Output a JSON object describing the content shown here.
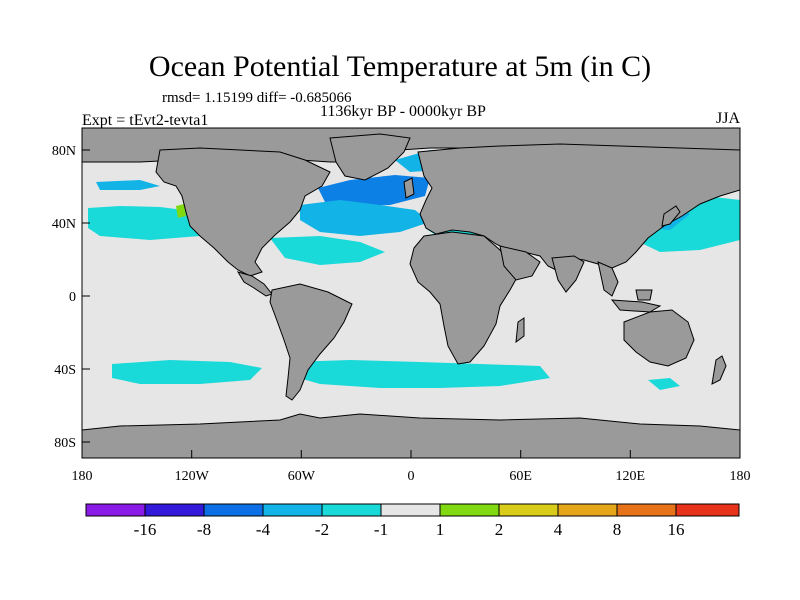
{
  "title": "Ocean Potential Temperature at 5m (in C)",
  "stats": "rmsd= 1.15199 diff= -0.685066",
  "period": "1136kyr BP - 0000kyr BP",
  "experiment": "Expt = tEvt2-tevta1",
  "season": "JJA",
  "map": {
    "lon_ticks": [
      "180",
      "120W",
      "60W",
      "0",
      "60E",
      "120E",
      "180"
    ],
    "lat_ticks": [
      "80N",
      "40N",
      "0",
      "40S",
      "80S"
    ],
    "colors": {
      "land": "#9a9a9a",
      "ocean_neutral": "#e6e6e6",
      "coastline": "#000000",
      "cyan": "#1ad9d9",
      "light_blue": "#12b3e6",
      "mid_blue": "#0d80e6",
      "green": "#80d911",
      "yellow_green": "#c6d91a"
    }
  },
  "colorbar": {
    "labels": [
      "-16",
      "-8",
      "-4",
      "-2",
      "-1",
      "1",
      "2",
      "4",
      "8",
      "16"
    ],
    "colors": [
      "#8a1ae6",
      "#3319d9",
      "#0d6fe6",
      "#12b3e6",
      "#1ad9d9",
      "#e6e6e6",
      "#80d911",
      "#d9cc1a",
      "#e6a61a",
      "#e6731a",
      "#e6331a"
    ]
  }
}
